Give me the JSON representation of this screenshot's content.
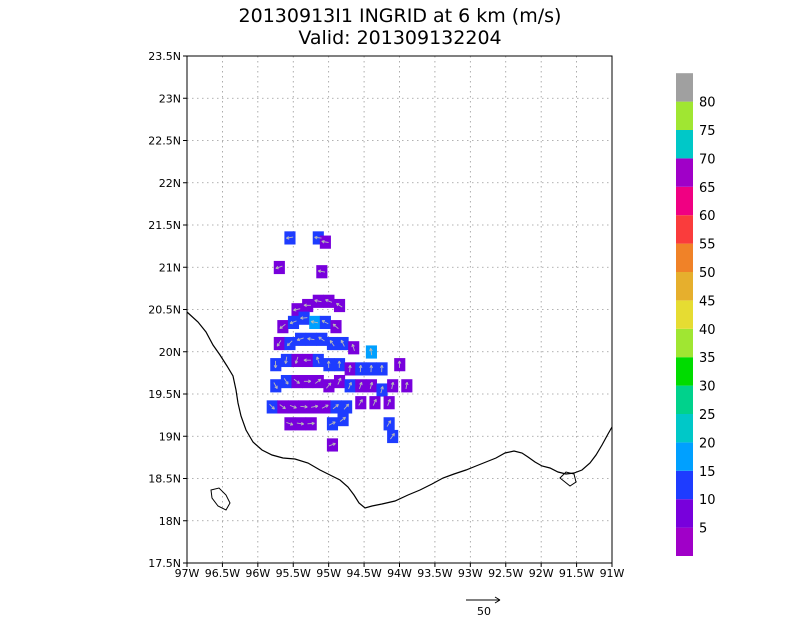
{
  "chart_data": {
    "type": "heatmap",
    "title": "20130913I1 INGRID at 6 km (m/s)",
    "subtitle": "Valid: 201309132204",
    "x_ticks": [
      "97W",
      "96.5W",
      "96W",
      "95.5W",
      "95W",
      "94.5W",
      "94W",
      "93.5W",
      "93W",
      "92.5W",
      "92W",
      "91.5W",
      "91W"
    ],
    "y_ticks": [
      "17.5N",
      "18N",
      "18.5N",
      "19N",
      "19.5N",
      "20N",
      "20.5N",
      "21N",
      "21.5N",
      "22N",
      "22.5N",
      "23N",
      "23.5N"
    ],
    "xlim": [
      -97,
      -91
    ],
    "ylim": [
      17.5,
      23.5
    ],
    "grid": true,
    "colorbar": {
      "labels": [
        "5",
        "10",
        "15",
        "20",
        "25",
        "30",
        "35",
        "40",
        "45",
        "50",
        "55",
        "60",
        "65",
        "70",
        "75",
        "80"
      ],
      "colors": [
        "#a000c8",
        "#7800dc",
        "#1e3cff",
        "#00a0ff",
        "#00c8c8",
        "#00d28c",
        "#00dc00",
        "#a0e632",
        "#e6dc32",
        "#e6af2d",
        "#f08228",
        "#fa3c3c",
        "#f00082",
        "#a000c8",
        "#00c8c8",
        "#a0e632",
        "#a0a0a0"
      ]
    },
    "vector_reference": {
      "value": "50"
    },
    "wind_cells": [
      {
        "lon": -95.55,
        "lat": 21.35,
        "speed": 12
      },
      {
        "lon": -95.15,
        "lat": 21.35,
        "speed": 11
      },
      {
        "lon": -95.05,
        "lat": 21.3,
        "speed": 7
      },
      {
        "lon": -95.7,
        "lat": 21.0,
        "speed": 9
      },
      {
        "lon": -95.1,
        "lat": 20.95,
        "speed": 7
      },
      {
        "lon": -95.45,
        "lat": 20.5,
        "speed": 7
      },
      {
        "lon": -95.3,
        "lat": 20.55,
        "speed": 8
      },
      {
        "lon": -95.15,
        "lat": 20.6,
        "speed": 6
      },
      {
        "lon": -95.0,
        "lat": 20.6,
        "speed": 5
      },
      {
        "lon": -94.85,
        "lat": 20.55,
        "speed": 6
      },
      {
        "lon": -95.65,
        "lat": 20.3,
        "speed": 7
      },
      {
        "lon": -95.5,
        "lat": 20.35,
        "speed": 11
      },
      {
        "lon": -95.35,
        "lat": 20.4,
        "speed": 13
      },
      {
        "lon": -95.2,
        "lat": 20.35,
        "speed": 16
      },
      {
        "lon": -95.05,
        "lat": 20.35,
        "speed": 13
      },
      {
        "lon": -94.9,
        "lat": 20.3,
        "speed": 9
      },
      {
        "lon": -95.7,
        "lat": 20.1,
        "speed": 7
      },
      {
        "lon": -95.55,
        "lat": 20.1,
        "speed": 12
      },
      {
        "lon": -95.4,
        "lat": 20.15,
        "speed": 13
      },
      {
        "lon": -95.25,
        "lat": 20.15,
        "speed": 12
      },
      {
        "lon": -95.1,
        "lat": 20.15,
        "speed": 13
      },
      {
        "lon": -94.95,
        "lat": 20.1,
        "speed": 11
      },
      {
        "lon": -94.8,
        "lat": 20.1,
        "speed": 12
      },
      {
        "lon": -94.65,
        "lat": 20.05,
        "speed": 9
      },
      {
        "lon": -94.4,
        "lat": 20.0,
        "speed": 15
      },
      {
        "lon": -95.75,
        "lat": 19.85,
        "speed": 11
      },
      {
        "lon": -95.6,
        "lat": 19.9,
        "speed": 10
      },
      {
        "lon": -95.45,
        "lat": 19.9,
        "speed": 7
      },
      {
        "lon": -95.3,
        "lat": 19.9,
        "speed": 9
      },
      {
        "lon": -95.15,
        "lat": 19.9,
        "speed": 12
      },
      {
        "lon": -95.0,
        "lat": 19.85,
        "speed": 11
      },
      {
        "lon": -94.85,
        "lat": 19.85,
        "speed": 12
      },
      {
        "lon": -94.7,
        "lat": 19.8,
        "speed": 9
      },
      {
        "lon": -94.55,
        "lat": 19.8,
        "speed": 11
      },
      {
        "lon": -94.4,
        "lat": 19.8,
        "speed": 12
      },
      {
        "lon": -94.25,
        "lat": 19.8,
        "speed": 10
      },
      {
        "lon": -94.0,
        "lat": 19.85,
        "speed": 6
      },
      {
        "lon": -95.75,
        "lat": 19.6,
        "speed": 11
      },
      {
        "lon": -95.6,
        "lat": 19.65,
        "speed": 10
      },
      {
        "lon": -95.45,
        "lat": 19.65,
        "speed": 6
      },
      {
        "lon": -95.3,
        "lat": 19.65,
        "speed": 6
      },
      {
        "lon": -95.15,
        "lat": 19.65,
        "speed": 7
      },
      {
        "lon": -95.0,
        "lat": 19.6,
        "speed": 7
      },
      {
        "lon": -94.85,
        "lat": 19.65,
        "speed": 6
      },
      {
        "lon": -94.7,
        "lat": 19.6,
        "speed": 10
      },
      {
        "lon": -94.55,
        "lat": 19.6,
        "speed": 7
      },
      {
        "lon": -94.4,
        "lat": 19.6,
        "speed": 6
      },
      {
        "lon": -94.25,
        "lat": 19.55,
        "speed": 11
      },
      {
        "lon": -94.1,
        "lat": 19.6,
        "speed": 7
      },
      {
        "lon": -93.9,
        "lat": 19.6,
        "speed": 6
      },
      {
        "lon": -95.8,
        "lat": 19.35,
        "speed": 12
      },
      {
        "lon": -95.65,
        "lat": 19.35,
        "speed": 7
      },
      {
        "lon": -95.5,
        "lat": 19.35,
        "speed": 6
      },
      {
        "lon": -95.35,
        "lat": 19.35,
        "speed": 6
      },
      {
        "lon": -95.2,
        "lat": 19.35,
        "speed": 7
      },
      {
        "lon": -95.05,
        "lat": 19.35,
        "speed": 6
      },
      {
        "lon": -94.9,
        "lat": 19.35,
        "speed": 11
      },
      {
        "lon": -94.75,
        "lat": 19.35,
        "speed": 10
      },
      {
        "lon": -94.55,
        "lat": 19.4,
        "speed": 6
      },
      {
        "lon": -94.35,
        "lat": 19.4,
        "speed": 7
      },
      {
        "lon": -94.15,
        "lat": 19.4,
        "speed": 6
      },
      {
        "lon": -95.55,
        "lat": 19.15,
        "speed": 7
      },
      {
        "lon": -95.4,
        "lat": 19.15,
        "speed": 6
      },
      {
        "lon": -95.25,
        "lat": 19.15,
        "speed": 7
      },
      {
        "lon": -94.95,
        "lat": 19.15,
        "speed": 11
      },
      {
        "lon": -94.8,
        "lat": 19.2,
        "speed": 10
      },
      {
        "lon": -94.15,
        "lat": 19.15,
        "speed": 11
      },
      {
        "lon": -94.1,
        "lat": 19.0,
        "speed": 11
      },
      {
        "lon": -94.95,
        "lat": 18.9,
        "speed": 7
      }
    ]
  }
}
